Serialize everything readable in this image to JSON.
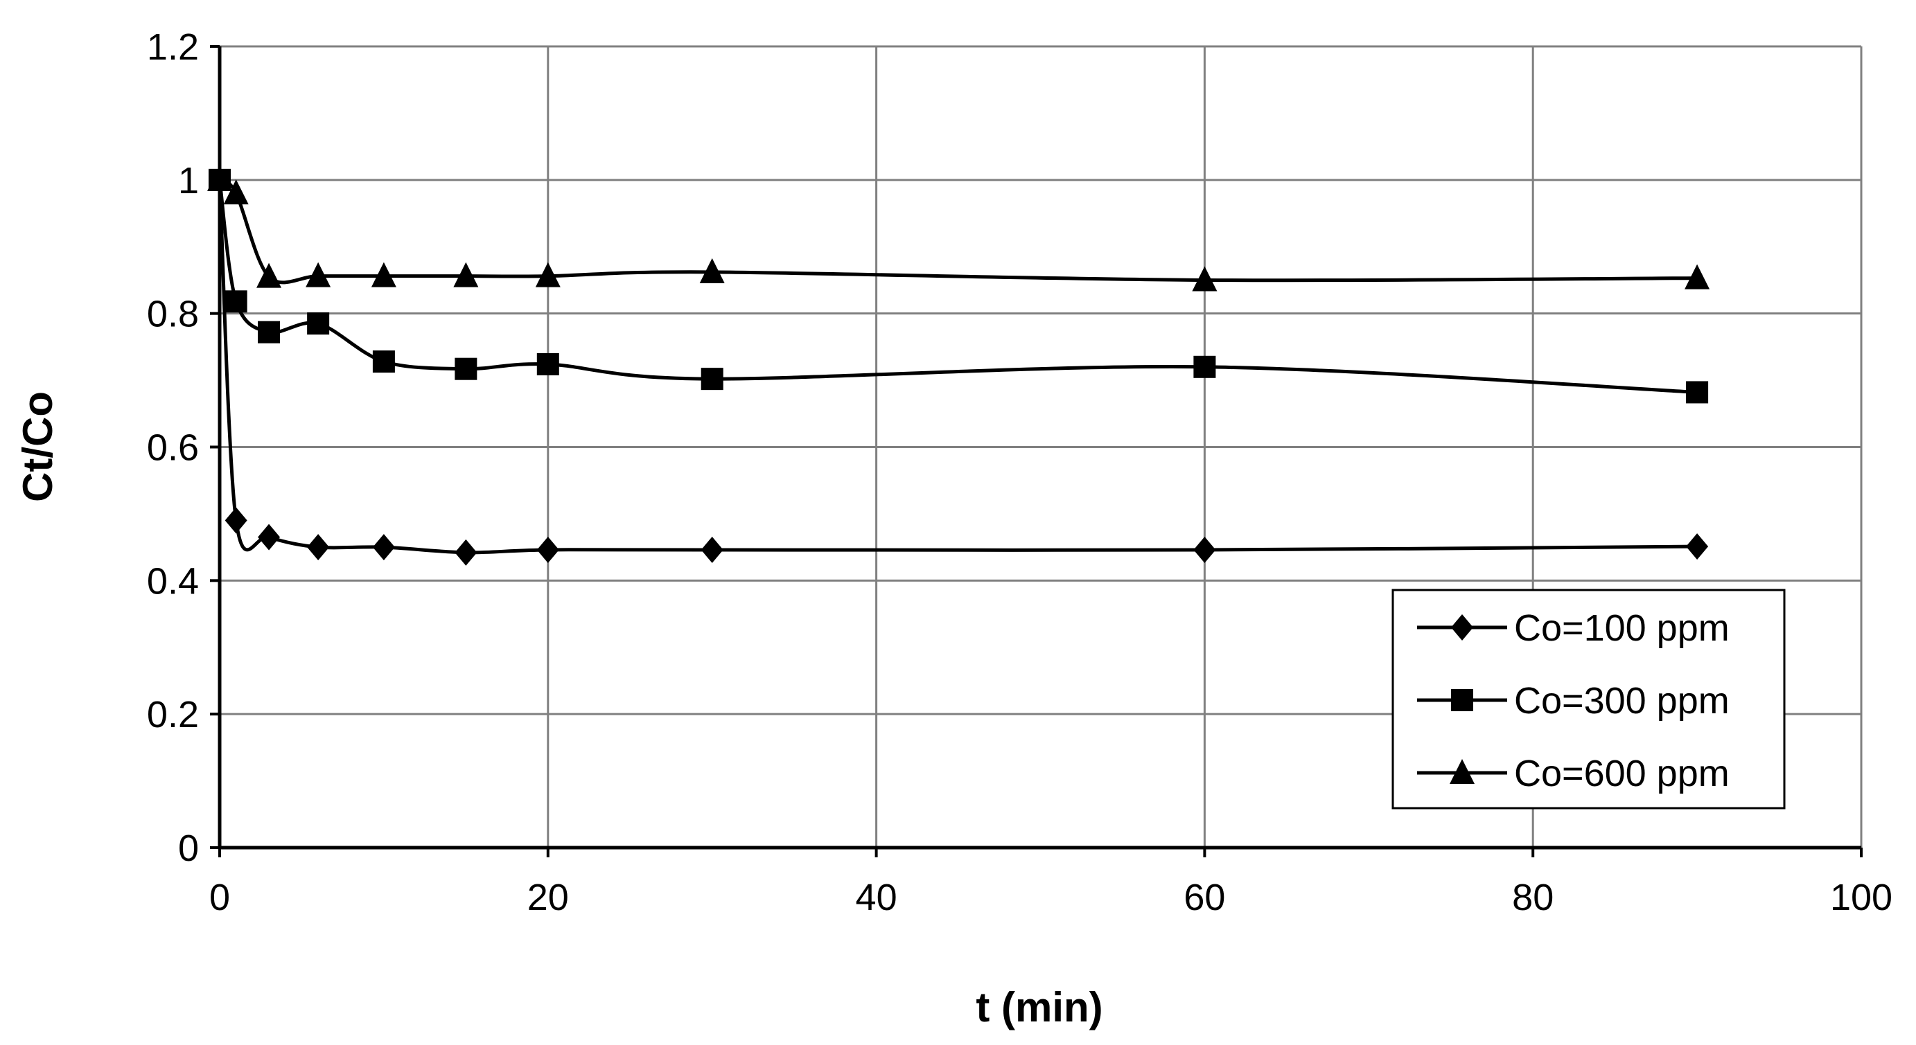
{
  "chart_data": {
    "type": "line",
    "title": "",
    "xlabel": "t (min)",
    "ylabel": "Ct/Co",
    "xlim": [
      0,
      100
    ],
    "ylim": [
      0,
      1.2
    ],
    "xticks": [
      0,
      20,
      40,
      60,
      80,
      100
    ],
    "yticks": [
      0,
      0.2,
      0.4,
      0.6,
      0.8,
      1,
      1.2
    ],
    "xtick_labels": [
      "0",
      "20",
      "40",
      "60",
      "80",
      "100"
    ],
    "ytick_labels": [
      "0",
      "0.2",
      "0.4",
      "0.6",
      "0.8",
      "1",
      "1.2"
    ],
    "grid": true,
    "legend_position": "bottom-right",
    "x": [
      0,
      1,
      3,
      6,
      10,
      15,
      20,
      30,
      60,
      90
    ],
    "series": [
      {
        "name": "Co=100 ppm",
        "marker": "diamond",
        "values": [
          1.0,
          0.49,
          0.465,
          0.45,
          0.45,
          0.442,
          0.446,
          0.446,
          0.446,
          0.451
        ]
      },
      {
        "name": "Co=300 ppm",
        "marker": "square",
        "values": [
          1.0,
          0.818,
          0.772,
          0.785,
          0.728,
          0.717,
          0.724,
          0.702,
          0.72,
          0.682
        ]
      },
      {
        "name": "Co=600 ppm",
        "marker": "triangle",
        "values": [
          1.0,
          0.98,
          0.855,
          0.856,
          0.856,
          0.856,
          0.856,
          0.862,
          0.85,
          0.853
        ]
      }
    ],
    "colors": {
      "line": "#000000",
      "grid": "#808080",
      "frame": "#808080"
    }
  }
}
